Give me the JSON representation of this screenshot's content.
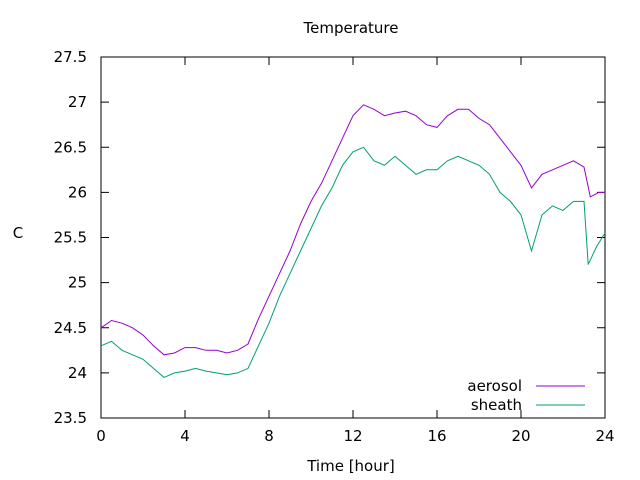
{
  "chart_data": {
    "type": "line",
    "title": "Temperature",
    "xlabel": "Time [hour]",
    "ylabel": "C",
    "xlim": [
      0,
      24
    ],
    "ylim": [
      23.5,
      27.5
    ],
    "x_ticks": [
      0,
      4,
      8,
      12,
      16,
      20,
      24
    ],
    "y_ticks": [
      23.5,
      24,
      24.5,
      25,
      25.5,
      26,
      26.5,
      27,
      27.5
    ],
    "y_tick_labels": [
      "23.5",
      "24",
      "24.5",
      "25",
      "25.5",
      "26",
      "26.5",
      "27",
      "27.5"
    ],
    "grid": false,
    "legend_position": "bottom-right",
    "series": [
      {
        "name": "aerosol",
        "color": "#9400d3",
        "points": [
          [
            0,
            24.5
          ],
          [
            0.5,
            24.58
          ],
          [
            1,
            24.55
          ],
          [
            1.5,
            24.5
          ],
          [
            2,
            24.42
          ],
          [
            2.5,
            24.3
          ],
          [
            3,
            24.2
          ],
          [
            3.5,
            24.22
          ],
          [
            4,
            24.28
          ],
          [
            4.5,
            24.28
          ],
          [
            5,
            24.25
          ],
          [
            5.5,
            24.25
          ],
          [
            6,
            24.22
          ],
          [
            6.5,
            24.25
          ],
          [
            7,
            24.32
          ],
          [
            7.5,
            24.6
          ],
          [
            8,
            24.85
          ],
          [
            8.5,
            25.1
          ],
          [
            9,
            25.35
          ],
          [
            9.5,
            25.65
          ],
          [
            10,
            25.9
          ],
          [
            10.5,
            26.1
          ],
          [
            11,
            26.35
          ],
          [
            11.5,
            26.6
          ],
          [
            12,
            26.85
          ],
          [
            12.5,
            26.97
          ],
          [
            13,
            26.92
          ],
          [
            13.5,
            26.85
          ],
          [
            14,
            26.88
          ],
          [
            14.5,
            26.9
          ],
          [
            15,
            26.85
          ],
          [
            15.5,
            26.75
          ],
          [
            16,
            26.72
          ],
          [
            16.5,
            26.85
          ],
          [
            17,
            26.92
          ],
          [
            17.5,
            26.92
          ],
          [
            18,
            26.82
          ],
          [
            18.5,
            26.75
          ],
          [
            19,
            26.6
          ],
          [
            19.5,
            26.45
          ],
          [
            20,
            26.3
          ],
          [
            20.5,
            26.05
          ],
          [
            21,
            26.2
          ],
          [
            21.5,
            26.25
          ],
          [
            22,
            26.3
          ],
          [
            22.5,
            26.35
          ],
          [
            23,
            26.28
          ],
          [
            23.3,
            25.95
          ],
          [
            23.7,
            26.0
          ],
          [
            24,
            26.0
          ]
        ]
      },
      {
        "name": "sheath",
        "color": "#009e73",
        "points": [
          [
            0,
            24.3
          ],
          [
            0.5,
            24.35
          ],
          [
            1,
            24.25
          ],
          [
            1.5,
            24.2
          ],
          [
            2,
            24.15
          ],
          [
            2.5,
            24.05
          ],
          [
            3,
            23.95
          ],
          [
            3.5,
            24.0
          ],
          [
            4,
            24.02
          ],
          [
            4.5,
            24.05
          ],
          [
            5,
            24.02
          ],
          [
            5.5,
            24.0
          ],
          [
            6,
            23.98
          ],
          [
            6.5,
            24.0
          ],
          [
            7,
            24.05
          ],
          [
            7.5,
            24.3
          ],
          [
            8,
            24.55
          ],
          [
            8.5,
            24.85
          ],
          [
            9,
            25.1
          ],
          [
            9.5,
            25.35
          ],
          [
            10,
            25.6
          ],
          [
            10.5,
            25.85
          ],
          [
            11,
            26.05
          ],
          [
            11.5,
            26.3
          ],
          [
            12,
            26.45
          ],
          [
            12.5,
            26.5
          ],
          [
            13,
            26.35
          ],
          [
            13.5,
            26.3
          ],
          [
            14,
            26.4
          ],
          [
            14.5,
            26.3
          ],
          [
            15,
            26.2
          ],
          [
            15.5,
            26.25
          ],
          [
            16,
            26.25
          ],
          [
            16.5,
            26.35
          ],
          [
            17,
            26.4
          ],
          [
            17.5,
            26.35
          ],
          [
            18,
            26.3
          ],
          [
            18.5,
            26.2
          ],
          [
            19,
            26.0
          ],
          [
            19.5,
            25.9
          ],
          [
            20,
            25.75
          ],
          [
            20.5,
            25.35
          ],
          [
            21,
            25.75
          ],
          [
            21.5,
            25.85
          ],
          [
            22,
            25.8
          ],
          [
            22.5,
            25.9
          ],
          [
            23,
            25.9
          ],
          [
            23.2,
            25.2
          ],
          [
            23.6,
            25.4
          ],
          [
            24,
            25.55
          ]
        ]
      }
    ]
  }
}
